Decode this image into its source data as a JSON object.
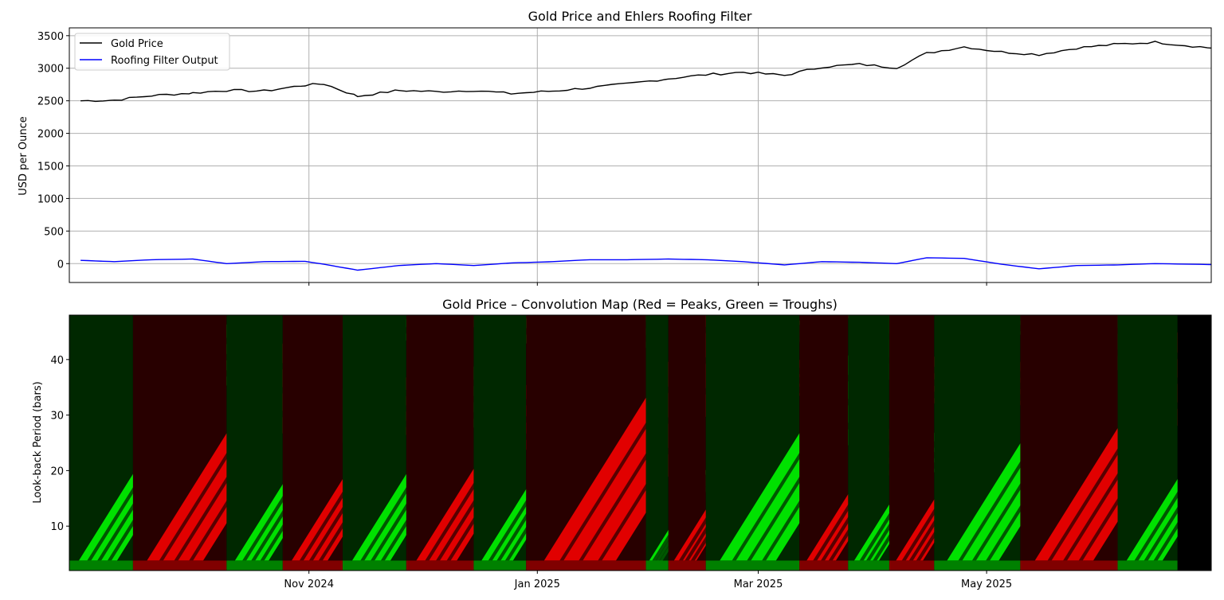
{
  "chart_data": [
    {
      "type": "line",
      "title": "Gold Price and Ehlers Roofing Filter",
      "xlabel": "",
      "ylabel": "USD per Ounce",
      "ylim": [
        -290,
        3620
      ],
      "yticks": [
        0,
        500,
        1000,
        1500,
        2000,
        2500,
        3000,
        3500
      ],
      "grid": true,
      "legend_position": "top-left",
      "x_range": [
        "2024-08-29",
        "2025-06-30"
      ],
      "x": [
        "2024-09-01",
        "2024-09-10",
        "2024-09-20",
        "2024-10-01",
        "2024-10-10",
        "2024-10-20",
        "2024-10-31",
        "2024-11-05",
        "2024-11-14",
        "2024-11-25",
        "2024-12-05",
        "2024-12-15",
        "2024-12-25",
        "2025-01-05",
        "2025-01-15",
        "2025-01-25",
        "2025-02-05",
        "2025-02-15",
        "2025-02-25",
        "2025-03-08",
        "2025-03-18",
        "2025-03-28",
        "2025-04-07",
        "2025-04-15",
        "2025-04-25",
        "2025-05-05",
        "2025-05-15",
        "2025-05-25",
        "2025-06-05",
        "2025-06-15",
        "2025-06-30"
      ],
      "series": [
        {
          "name": "Gold Price",
          "color": "#000000",
          "values": [
            2500,
            2510,
            2580,
            2620,
            2660,
            2650,
            2740,
            2760,
            2570,
            2660,
            2640,
            2660,
            2610,
            2650,
            2700,
            2760,
            2840,
            2900,
            2940,
            2890,
            3020,
            3060,
            3010,
            3230,
            3330,
            3250,
            3210,
            3310,
            3370,
            3400,
            3310
          ]
        },
        {
          "name": "Roofing Filter Output",
          "color": "#0000ff",
          "values": [
            50,
            30,
            60,
            70,
            0,
            30,
            35,
            -10,
            -100,
            -30,
            0,
            -30,
            10,
            30,
            60,
            60,
            70,
            60,
            30,
            -20,
            30,
            20,
            0,
            90,
            80,
            -10,
            -80,
            -30,
            -20,
            0,
            -15
          ]
        }
      ]
    },
    {
      "type": "heatmap",
      "title": "Gold Price – Convolution Map (Red = Peaks, Green = Troughs)",
      "xlabel": "",
      "ylabel": "Look-back Period (bars)",
      "ylim": [
        2,
        48
      ],
      "yticks": [
        10,
        20,
        30,
        40
      ],
      "x_range": [
        "2024-08-29",
        "2025-06-30"
      ],
      "xtick_labels": [
        {
          "date": "2024-11-01",
          "label": "Nov 2024"
        },
        {
          "date": "2025-01-01",
          "label": "Jan 2025"
        },
        {
          "date": "2025-03-01",
          "label": "Mar 2025"
        },
        {
          "date": "2025-05-01",
          "label": "May 2025"
        }
      ],
      "colors": {
        "peak": "#e60000",
        "trough": "#00e600",
        "neutral": "#000000"
      },
      "regions": [
        {
          "start": "2024-08-29",
          "end": "2024-09-15",
          "state": "trough"
        },
        {
          "start": "2024-09-15",
          "end": "2024-10-10",
          "state": "peak"
        },
        {
          "start": "2024-10-10",
          "end": "2024-10-25",
          "state": "trough"
        },
        {
          "start": "2024-10-25",
          "end": "2024-11-10",
          "state": "peak"
        },
        {
          "start": "2024-11-10",
          "end": "2024-11-27",
          "state": "trough"
        },
        {
          "start": "2024-11-27",
          "end": "2024-12-15",
          "state": "peak"
        },
        {
          "start": "2024-12-15",
          "end": "2024-12-29",
          "state": "trough"
        },
        {
          "start": "2024-12-29",
          "end": "2025-01-30",
          "state": "peak"
        },
        {
          "start": "2025-01-30",
          "end": "2025-02-05",
          "state": "trough"
        },
        {
          "start": "2025-02-05",
          "end": "2025-02-15",
          "state": "peak"
        },
        {
          "start": "2025-02-15",
          "end": "2025-03-12",
          "state": "trough"
        },
        {
          "start": "2025-03-12",
          "end": "2025-03-25",
          "state": "peak"
        },
        {
          "start": "2025-03-25",
          "end": "2025-04-05",
          "state": "trough"
        },
        {
          "start": "2025-04-05",
          "end": "2025-04-17",
          "state": "peak"
        },
        {
          "start": "2025-04-17",
          "end": "2025-05-10",
          "state": "trough"
        },
        {
          "start": "2025-05-10",
          "end": "2025-06-05",
          "state": "peak"
        },
        {
          "start": "2025-06-05",
          "end": "2025-06-21",
          "state": "trough"
        },
        {
          "start": "2025-06-21",
          "end": "2025-06-30",
          "state": "neutral"
        }
      ]
    }
  ]
}
